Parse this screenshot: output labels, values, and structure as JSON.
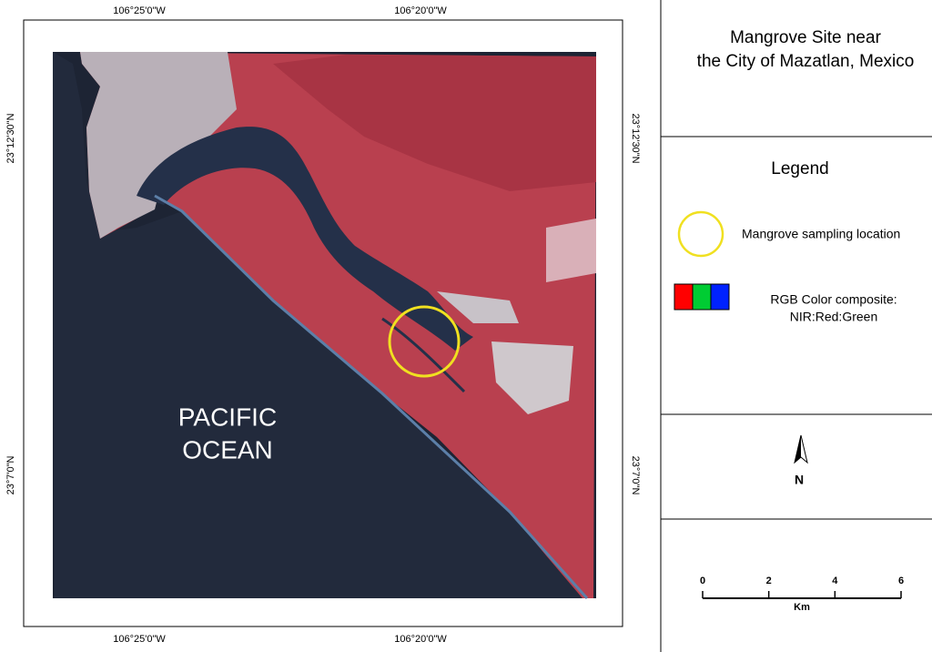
{
  "title_lines": [
    "Mangrove Site near",
    "the City of Mazatlan, Mexico"
  ],
  "frame_labels": {
    "top": [
      "106°25'0\"W",
      "106°20'0\"W"
    ],
    "bottom": [
      "106°25'0\"W",
      "106°20'0\"W"
    ],
    "left": [
      "23°12'30\"N",
      "23°7'0\"N"
    ],
    "right": [
      "23°12'30\"N",
      "23°7'0\"N"
    ]
  },
  "map_labels": [
    "PACIFIC",
    "OCEAN"
  ],
  "legend": {
    "title": "Legend",
    "sampling_label": "Mangrove sampling location",
    "composite_lines": [
      "RGB Color composite:",
      "NIR:Red:Green"
    ]
  },
  "north_label": "N",
  "scale_bar": {
    "ticks": [
      0,
      2,
      4,
      6
    ],
    "unit": "Km"
  }
}
